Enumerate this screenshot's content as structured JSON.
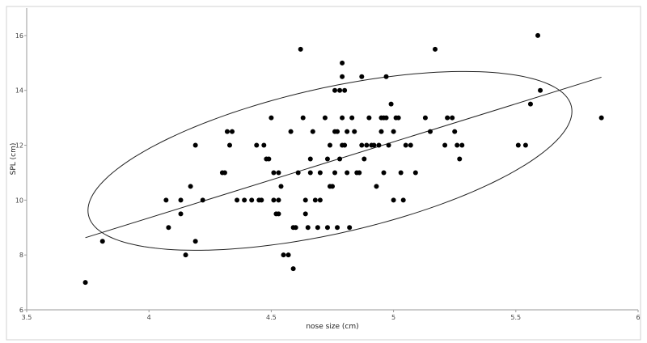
{
  "chart_data": {
    "type": "scatter",
    "title": "",
    "xlabel": "nose size (cm)",
    "ylabel": "SPL (cm)",
    "xlim": [
      3.5,
      6
    ],
    "ylim": [
      6,
      17
    ],
    "xticks": [
      3.5,
      4,
      4.5,
      5,
      5.5,
      6
    ],
    "yticks": [
      6,
      8,
      10,
      12,
      14,
      16
    ],
    "xtick_labels": [
      "3.5",
      "4",
      "4.5",
      "5",
      "5.5",
      "6"
    ],
    "ytick_labels": [
      "6",
      "8",
      "10",
      "12",
      "14",
      "16"
    ],
    "grid": false,
    "points": [
      [
        3.74,
        7.0
      ],
      [
        3.81,
        8.5
      ],
      [
        4.07,
        10.0
      ],
      [
        4.08,
        9.0
      ],
      [
        4.13,
        10.0
      ],
      [
        4.13,
        9.5
      ],
      [
        4.15,
        8.0
      ],
      [
        4.17,
        10.5
      ],
      [
        4.19,
        12.0
      ],
      [
        4.19,
        8.5
      ],
      [
        4.22,
        10.0
      ],
      [
        4.3,
        11.0
      ],
      [
        4.31,
        11.0
      ],
      [
        4.32,
        12.5
      ],
      [
        4.33,
        12.0
      ],
      [
        4.34,
        12.5
      ],
      [
        4.36,
        10.0
      ],
      [
        4.39,
        10.0
      ],
      [
        4.42,
        10.0
      ],
      [
        4.44,
        12.0
      ],
      [
        4.45,
        10.0
      ],
      [
        4.46,
        10.0
      ],
      [
        4.47,
        12.0
      ],
      [
        4.48,
        11.5
      ],
      [
        4.49,
        11.5
      ],
      [
        4.5,
        13.0
      ],
      [
        4.51,
        11.0
      ],
      [
        4.51,
        10.0
      ],
      [
        4.52,
        9.5
      ],
      [
        4.53,
        11.0
      ],
      [
        4.53,
        10.0
      ],
      [
        4.53,
        9.5
      ],
      [
        4.54,
        10.5
      ],
      [
        4.55,
        8.0
      ],
      [
        4.57,
        8.0
      ],
      [
        4.58,
        12.5
      ],
      [
        4.59,
        9.0
      ],
      [
        4.59,
        7.5
      ],
      [
        4.6,
        9.0
      ],
      [
        4.61,
        11.0
      ],
      [
        4.62,
        15.5
      ],
      [
        4.63,
        13.0
      ],
      [
        4.64,
        10.0
      ],
      [
        4.64,
        9.5
      ],
      [
        4.65,
        9.0
      ],
      [
        4.66,
        11.5
      ],
      [
        4.66,
        11.0
      ],
      [
        4.67,
        12.5
      ],
      [
        4.68,
        10.0
      ],
      [
        4.69,
        9.0
      ],
      [
        4.7,
        11.0
      ],
      [
        4.7,
        10.0
      ],
      [
        4.72,
        13.0
      ],
      [
        4.73,
        11.5
      ],
      [
        4.73,
        9.0
      ],
      [
        4.74,
        12.0
      ],
      [
        4.74,
        10.5
      ],
      [
        4.75,
        10.5
      ],
      [
        4.76,
        14.0
      ],
      [
        4.76,
        12.5
      ],
      [
        4.76,
        11.0
      ],
      [
        4.77,
        12.5
      ],
      [
        4.77,
        9.0
      ],
      [
        4.78,
        14.0
      ],
      [
        4.78,
        11.5
      ],
      [
        4.79,
        15.0
      ],
      [
        4.79,
        14.5
      ],
      [
        4.79,
        13.0
      ],
      [
        4.79,
        12.0
      ],
      [
        4.8,
        14.0
      ],
      [
        4.8,
        12.0
      ],
      [
        4.81,
        12.5
      ],
      [
        4.81,
        11.0
      ],
      [
        4.82,
        9.0
      ],
      [
        4.83,
        13.0
      ],
      [
        4.84,
        12.5
      ],
      [
        4.85,
        11.0
      ],
      [
        4.86,
        11.0
      ],
      [
        4.87,
        14.5
      ],
      [
        4.87,
        12.0
      ],
      [
        4.88,
        11.5
      ],
      [
        4.89,
        12.0
      ],
      [
        4.9,
        13.0
      ],
      [
        4.91,
        12.0
      ],
      [
        4.92,
        12.0
      ],
      [
        4.93,
        10.5
      ],
      [
        4.94,
        12.0
      ],
      [
        4.95,
        13.0
      ],
      [
        4.95,
        12.5
      ],
      [
        4.96,
        13.0
      ],
      [
        4.96,
        11.0
      ],
      [
        4.97,
        14.5
      ],
      [
        4.97,
        13.0
      ],
      [
        4.98,
        12.0
      ],
      [
        4.99,
        13.5
      ],
      [
        5.0,
        12.5
      ],
      [
        5.0,
        10.0
      ],
      [
        5.01,
        13.0
      ],
      [
        5.02,
        13.0
      ],
      [
        5.03,
        11.0
      ],
      [
        5.04,
        10.0
      ],
      [
        5.05,
        12.0
      ],
      [
        5.07,
        12.0
      ],
      [
        5.09,
        11.0
      ],
      [
        5.13,
        13.0
      ],
      [
        5.15,
        12.5
      ],
      [
        5.17,
        15.5
      ],
      [
        5.21,
        12.0
      ],
      [
        5.22,
        13.0
      ],
      [
        5.24,
        13.0
      ],
      [
        5.25,
        12.5
      ],
      [
        5.26,
        12.0
      ],
      [
        5.27,
        11.5
      ],
      [
        5.28,
        12.0
      ],
      [
        5.51,
        12.0
      ],
      [
        5.54,
        12.0
      ],
      [
        5.56,
        13.5
      ],
      [
        5.59,
        16.0
      ],
      [
        5.6,
        14.0
      ],
      [
        5.85,
        13.0
      ]
    ],
    "regression_line": {
      "x": [
        3.74,
        5.85
      ],
      "y": [
        8.63,
        14.48
      ]
    },
    "confidence_ellipse": {
      "center": [
        4.74,
        11.43
      ],
      "semi_major_data": [
        0.905,
        2.75
      ],
      "semi_minor_data": [
        -0.4,
        1.75
      ]
    },
    "colors": {
      "points": "#000000",
      "lines": "#222222",
      "axes": "#9a9a9a",
      "frame": "#d0d0d0"
    }
  }
}
